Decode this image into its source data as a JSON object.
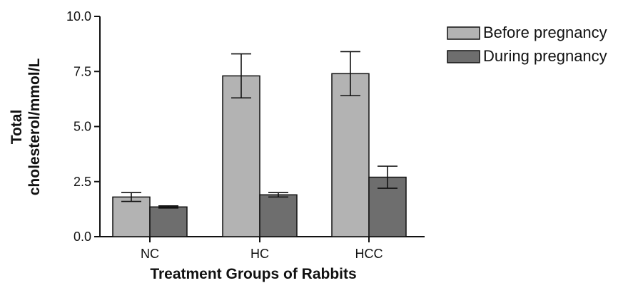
{
  "chart_data": {
    "type": "bar",
    "categories": [
      "NC",
      "HC",
      "HCC"
    ],
    "series": [
      {
        "name": "Before pregnancy",
        "values": [
          1.8,
          7.3,
          7.4
        ],
        "errors": [
          0.2,
          1.0,
          1.0
        ],
        "color": "#b3b3b3"
      },
      {
        "name": "During pregnancy",
        "values": [
          1.35,
          1.9,
          2.7
        ],
        "errors": [
          0.05,
          0.1,
          0.5
        ],
        "color": "#6e6e6e"
      }
    ],
    "xlabel": "Treatment Groups of Rabbits",
    "ylabel_lines": [
      "Total",
      "cholesterol/mmol/L"
    ],
    "ylim": [
      0,
      10
    ],
    "yticks": [
      "0.0",
      "2.5",
      "5.0",
      "7.5",
      "10.0"
    ],
    "ytick_values": [
      0,
      2.5,
      5,
      7.5,
      10
    ],
    "grid": false,
    "legend_position": "top-right"
  }
}
